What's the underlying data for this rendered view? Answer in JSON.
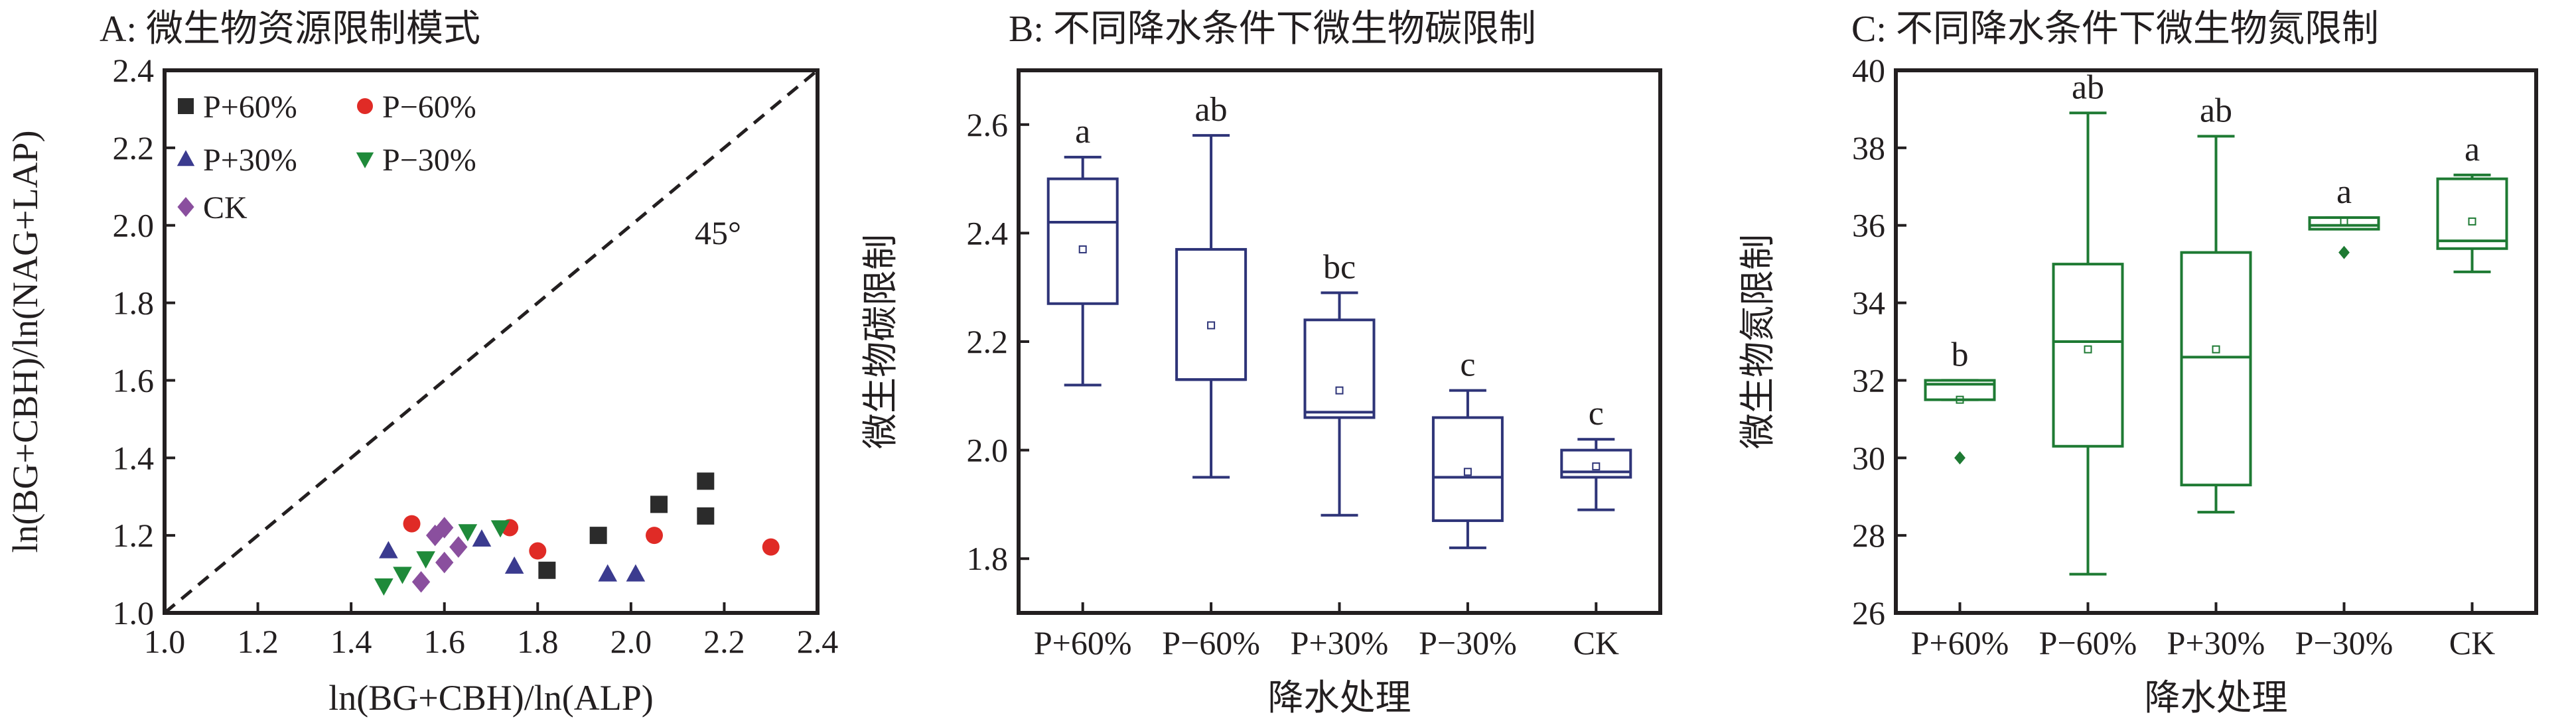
{
  "chart_data": [
    {
      "type": "scatter",
      "title": "A: 微生物资源限制模式",
      "xlabel": "ln(BG+CBH)/ln(ALP)",
      "ylabel": "ln(BG+CBH)/ln(NAG+LAP)",
      "xlim": [
        1.0,
        2.4
      ],
      "ylim": [
        1.0,
        2.4
      ],
      "xticks": [
        "1.0",
        "1.2",
        "1.4",
        "1.6",
        "1.8",
        "2.0",
        "2.2",
        "2.4"
      ],
      "yticks": [
        "1.0",
        "1.2",
        "1.4",
        "1.6",
        "1.8",
        "2.0",
        "2.2",
        "2.4"
      ],
      "reference_line": {
        "label": "45°",
        "slope": 1
      },
      "legend_position": "top-left",
      "series": [
        {
          "name": "P+60%",
          "marker": "square",
          "color": "#2b2b2b",
          "points": [
            [
              1.82,
              1.11
            ],
            [
              1.93,
              1.2
            ],
            [
              2.06,
              1.28
            ],
            [
              2.16,
              1.34
            ],
            [
              2.16,
              1.25
            ]
          ]
        },
        {
          "name": "P−60%",
          "marker": "circle",
          "color": "#e02b26",
          "points": [
            [
              1.53,
              1.23
            ],
            [
              1.74,
              1.22
            ],
            [
              1.8,
              1.16
            ],
            [
              2.05,
              1.2
            ],
            [
              2.3,
              1.17
            ]
          ]
        },
        {
          "name": "P+30%",
          "marker": "triangle-up",
          "color": "#3b3b8f",
          "points": [
            [
              1.48,
              1.16
            ],
            [
              1.68,
              1.19
            ],
            [
              1.75,
              1.12
            ],
            [
              1.95,
              1.1
            ],
            [
              2.01,
              1.1
            ]
          ]
        },
        {
          "name": "P−30%",
          "marker": "triangle-down",
          "color": "#1f8a3a",
          "points": [
            [
              1.47,
              1.07
            ],
            [
              1.51,
              1.1
            ],
            [
              1.56,
              1.14
            ],
            [
              1.65,
              1.21
            ],
            [
              1.72,
              1.22
            ]
          ]
        },
        {
          "name": "CK",
          "marker": "diamond",
          "color": "#8a4f9e",
          "points": [
            [
              1.55,
              1.08
            ],
            [
              1.58,
              1.2
            ],
            [
              1.6,
              1.22
            ],
            [
              1.6,
              1.13
            ],
            [
              1.63,
              1.17
            ]
          ]
        }
      ]
    },
    {
      "type": "box",
      "title": "B: 不同降水条件下微生物碳限制",
      "xlabel": "降水处理",
      "ylabel": "微生物碳限制",
      "ylim": [
        1.7,
        2.7
      ],
      "yticks": [
        "1.8",
        "2.0",
        "2.2",
        "2.4",
        "2.6"
      ],
      "color": "#2e3478",
      "categories": [
        "P+60%",
        "P−60%",
        "P+30%",
        "P−30%",
        "CK"
      ],
      "boxes": [
        {
          "min": 2.12,
          "q1": 2.27,
          "median": 2.42,
          "q3": 2.5,
          "max": 2.54,
          "mean": 2.37,
          "outliers": [],
          "letter": "a"
        },
        {
          "min": 1.95,
          "q1": 2.13,
          "median": 2.13,
          "q3": 2.37,
          "max": 2.58,
          "mean": 2.23,
          "outliers": [],
          "letter": "ab"
        },
        {
          "min": 1.88,
          "q1": 2.06,
          "median": 2.07,
          "q3": 2.24,
          "max": 2.29,
          "mean": 2.11,
          "outliers": [],
          "letter": "bc"
        },
        {
          "min": 1.82,
          "q1": 1.87,
          "median": 1.95,
          "q3": 2.06,
          "max": 2.11,
          "mean": 1.96,
          "outliers": [],
          "letter": "c"
        },
        {
          "min": 1.89,
          "q1": 1.95,
          "median": 1.96,
          "q3": 2.0,
          "max": 2.02,
          "mean": 1.97,
          "outliers": [],
          "letter": "c"
        }
      ]
    },
    {
      "type": "box",
      "title": "C: 不同降水条件下微生物氮限制",
      "xlabel": "降水处理",
      "ylabel": "微生物氮限制",
      "ylim": [
        26,
        40
      ],
      "yticks": [
        "26",
        "28",
        "30",
        "32",
        "34",
        "36",
        "38",
        "40"
      ],
      "color": "#1e7a33",
      "categories": [
        "P+60%",
        "P−60%",
        "P+30%",
        "P−30%",
        "CK"
      ],
      "boxes": [
        {
          "min": 31.5,
          "q1": 31.5,
          "median": 31.9,
          "q3": 32.0,
          "max": 32.0,
          "mean": 31.5,
          "outliers": [
            30.0
          ],
          "letter": "b"
        },
        {
          "min": 27.0,
          "q1": 30.3,
          "median": 33.0,
          "q3": 35.0,
          "max": 38.9,
          "mean": 32.8,
          "outliers": [],
          "letter": "ab"
        },
        {
          "min": 28.6,
          "q1": 29.3,
          "median": 32.6,
          "q3": 35.3,
          "max": 38.3,
          "mean": 32.8,
          "outliers": [],
          "letter": "ab"
        },
        {
          "min": 35.9,
          "q1": 35.9,
          "median": 36.0,
          "q3": 36.2,
          "max": 36.2,
          "mean": 36.1,
          "outliers": [
            35.3
          ],
          "letter": "a"
        },
        {
          "min": 34.8,
          "q1": 35.4,
          "median": 35.6,
          "q3": 37.2,
          "max": 37.3,
          "mean": 36.1,
          "outliers": [],
          "letter": "a"
        }
      ]
    }
  ]
}
